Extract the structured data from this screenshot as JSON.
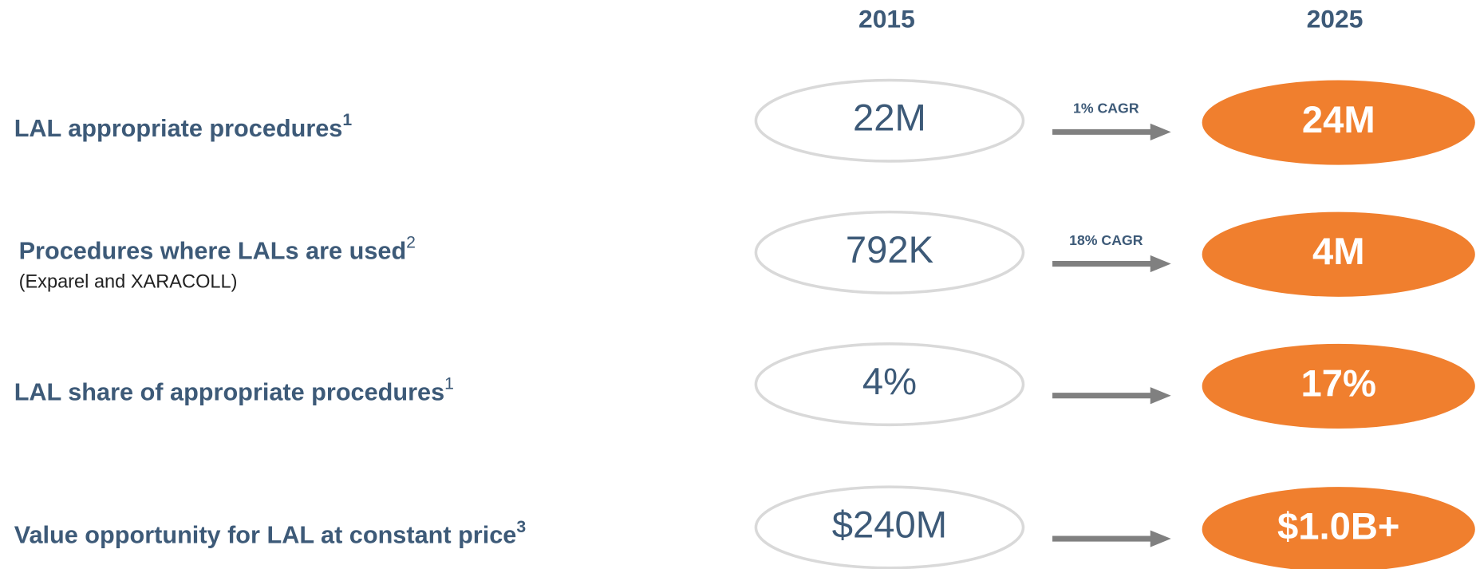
{
  "headers": [
    "2015",
    "2025"
  ],
  "rows": [
    {
      "label": "LAL appropriate procedures",
      "note": "1",
      "value_2015": "22M",
      "cagr": "1% CAGR",
      "value_2025": "24M"
    },
    {
      "label": "Procedures where LALs are used",
      "note": "2",
      "sublabel": "(Exparel and XARACOLL)",
      "value_2015": "792K",
      "cagr": "18% CAGR",
      "value_2025": "4M"
    },
    {
      "label": "LAL share of appropriate procedures",
      "note": "1",
      "value_2015": "4%",
      "value_2025": "17%"
    },
    {
      "label": "Value opportunity for LAL at constant price",
      "note": "3",
      "value_2015": "$240M",
      "value_2025": "$1.0B+"
    }
  ]
}
